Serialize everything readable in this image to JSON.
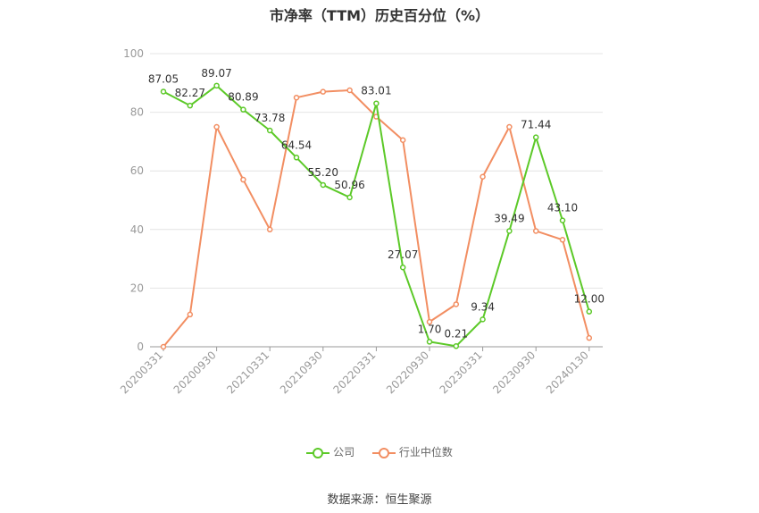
{
  "chart_data": {
    "type": "line",
    "title": "市净率（TTM）历史百分位（%）",
    "ylim": [
      0,
      100
    ],
    "yticks": [
      "0",
      "20",
      "40",
      "60",
      "80",
      "100"
    ],
    "x_tick_labels": [
      "20200331",
      "20200930",
      "20210331",
      "20210930",
      "20220331",
      "20220930",
      "20230331",
      "20230930",
      "20240130"
    ],
    "x_tick_indices": [
      0,
      2,
      4,
      6,
      8,
      10,
      12,
      14,
      16
    ],
    "series": [
      {
        "name": "公司",
        "color": "#5cc928",
        "values": [
          87.05,
          82.27,
          89.07,
          80.89,
          73.78,
          64.54,
          55.2,
          50.96,
          83.01,
          27.07,
          1.7,
          0.21,
          9.34,
          39.49,
          71.44,
          43.1,
          12.0
        ],
        "labels": [
          "87.05",
          "82.27",
          "89.07",
          "80.89",
          "73.78",
          "64.54",
          "55.20",
          "50.96",
          "83.01",
          "27.07",
          "1.70",
          "0.21",
          "9.34",
          "39.49",
          "71.44",
          "43.10",
          "12.00"
        ]
      },
      {
        "name": "行业中位数",
        "color": "#f28e62",
        "values": [
          0,
          11,
          75,
          57,
          40,
          85,
          87,
          87.5,
          78.5,
          70.5,
          8.5,
          14.5,
          58,
          75,
          39.5,
          36.5,
          3
        ]
      }
    ],
    "grid": true,
    "legend_position": "bottom"
  },
  "source_text": "数据来源：恒生聚源"
}
